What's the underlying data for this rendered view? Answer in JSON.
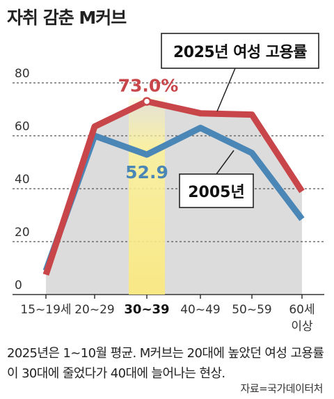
{
  "title": "자취 감춘 M커브",
  "chart_data": {
    "type": "line",
    "categories": [
      "15~19세",
      "20~29",
      "30~39",
      "40~49",
      "50~59",
      "60세 이상"
    ],
    "highlight_category": "30~39",
    "series": [
      {
        "name": "2025년 여성 고용률",
        "color": "#c8464a",
        "values": [
          7.5,
          63.5,
          73.0,
          68.5,
          68.0,
          39.0
        ]
      },
      {
        "name": "2005년",
        "color": "#4a86b6",
        "values": [
          9.0,
          60.0,
          52.9,
          63.0,
          53.5,
          28.5
        ]
      }
    ],
    "yticks": [
      0,
      20,
      40,
      60,
      80
    ],
    "ylim": [
      0,
      90
    ],
    "grid": true,
    "annotations": {
      "peak_2025": "73.0%",
      "dip_2005": "52.9"
    },
    "legend": [
      "2025년 여성 고용률",
      "2005년"
    ]
  },
  "note": "2025년은 1~10월 평균. M커브는 20대에 높았던 여성 고용률이 30대에 줄었다가 40대에 늘어나는 현상.",
  "source": "자료=국가데이터처"
}
